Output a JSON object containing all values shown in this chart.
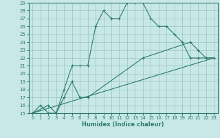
{
  "xlabel": "Humidex (Indice chaleur)",
  "background_color": "#c8e8e8",
  "grid_color": "#a0c8c8",
  "line_color": "#2d7a6a",
  "xlim": [
    -0.5,
    23.5
  ],
  "ylim": [
    15,
    29
  ],
  "xticks": [
    0,
    1,
    2,
    3,
    4,
    5,
    6,
    7,
    8,
    9,
    10,
    11,
    12,
    13,
    14,
    15,
    16,
    17,
    18,
    19,
    20,
    21,
    22,
    23
  ],
  "yticks": [
    15,
    16,
    17,
    18,
    19,
    20,
    21,
    22,
    23,
    24,
    25,
    26,
    27,
    28,
    29
  ],
  "line1_x": [
    0,
    1,
    2,
    3,
    4,
    5,
    6,
    7,
    8,
    9,
    10,
    11,
    12,
    13,
    14,
    15,
    16,
    17,
    18,
    19,
    20,
    21,
    22,
    23
  ],
  "line1_y": [
    15,
    16,
    15,
    15,
    18,
    21,
    21,
    21,
    26,
    28,
    27,
    27,
    29,
    29,
    29,
    27,
    26,
    26,
    25,
    24,
    22,
    22,
    22,
    22
  ],
  "line2_x": [
    0,
    2,
    3,
    4,
    5,
    6,
    7,
    14,
    20,
    21,
    22,
    23
  ],
  "line2_y": [
    15,
    16,
    15,
    17,
    19,
    17,
    17,
    22,
    24,
    23,
    22,
    22
  ],
  "line3_x": [
    0,
    23
  ],
  "line3_y": [
    15,
    22
  ],
  "tick_fontsize": 5.0,
  "xlabel_fontsize": 6.0
}
